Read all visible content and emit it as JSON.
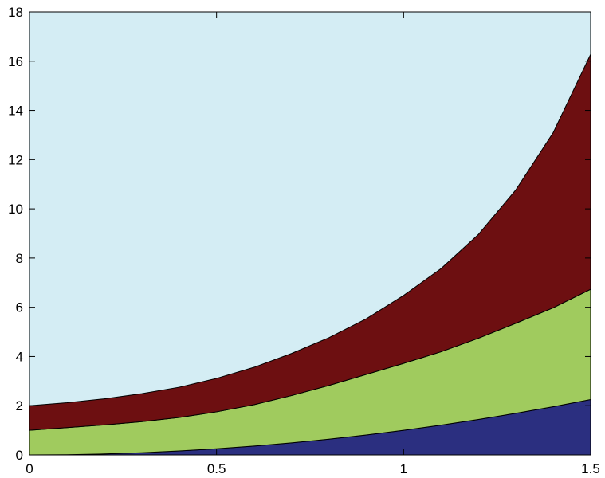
{
  "chart_data": {
    "type": "area",
    "stacked": true,
    "title": "",
    "xlabel": "",
    "ylabel": "",
    "xlim": [
      0,
      1.5
    ],
    "ylim": [
      0,
      18
    ],
    "x_ticks": [
      0,
      0.5,
      1,
      1.5
    ],
    "y_ticks": [
      0,
      2,
      4,
      6,
      8,
      10,
      12,
      14,
      16,
      18
    ],
    "x_tick_labels": [
      "0",
      "0.5",
      "1",
      "1.5"
    ],
    "y_tick_labels": [
      "0",
      "2",
      "4",
      "6",
      "8",
      "10",
      "12",
      "14",
      "16",
      "18"
    ],
    "grid": false,
    "background_color": "#d4edf4",
    "x": [
      0,
      0.1,
      0.2,
      0.3,
      0.4,
      0.5,
      0.6,
      0.7,
      0.8,
      0.9,
      1.0,
      1.1,
      1.2,
      1.3,
      1.4,
      1.5
    ],
    "series": [
      {
        "color": "#2b2f80",
        "values": [
          0,
          0.01,
          0.04,
          0.09,
          0.16,
          0.25,
          0.36,
          0.49,
          0.64,
          0.81,
          1.0,
          1.21,
          1.44,
          1.69,
          1.96,
          2.25
        ]
      },
      {
        "color": "#a0cb5e",
        "values": [
          1,
          1.1,
          1.18,
          1.26,
          1.36,
          1.5,
          1.68,
          1.92,
          2.18,
          2.46,
          2.72,
          2.98,
          3.3,
          3.66,
          4.02,
          4.48
        ]
      },
      {
        "color": "#6d0f11",
        "values": [
          1,
          1.01,
          1.06,
          1.14,
          1.23,
          1.36,
          1.52,
          1.71,
          1.94,
          2.26,
          2.76,
          3.38,
          4.22,
          5.42,
          7.12,
          9.55
        ]
      }
    ]
  }
}
